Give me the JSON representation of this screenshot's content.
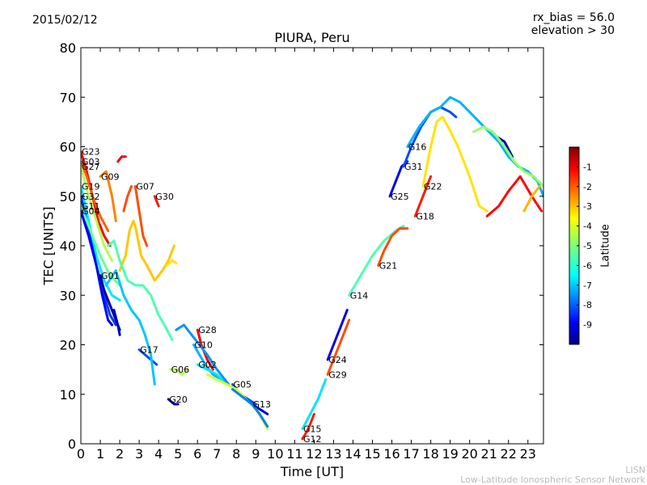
{
  "header": {
    "date": "2015/02/12",
    "annotation_line1": "rx_bias = 56.0",
    "annotation_line2": "elevation > 30"
  },
  "footer": {
    "credit_line1": "LISN",
    "credit_line2": "Low-Latitude Ionospheric Sensor Network"
  },
  "chart_data": {
    "type": "scatter",
    "title": "PIURA, Peru",
    "xlabel": "Time [UT]",
    "ylabel": "TEC [UNITS]",
    "xlim": [
      0,
      23.8
    ],
    "ylim": [
      0,
      80
    ],
    "xticks": [
      0,
      1,
      2,
      3,
      4,
      5,
      6,
      7,
      8,
      9,
      10,
      11,
      12,
      13,
      14,
      15,
      16,
      17,
      18,
      19,
      20,
      21,
      22,
      23
    ],
    "yticks": [
      0,
      10,
      20,
      30,
      40,
      50,
      60,
      70,
      80
    ],
    "grid": false,
    "colorbar": {
      "label": "Latitude",
      "range": [
        -10,
        0
      ],
      "ticks": [
        -1,
        -2,
        -3,
        -4,
        -5,
        -6,
        -7,
        -8,
        -9
      ],
      "colormap": "jet"
    },
    "series": [
      {
        "name": "G23",
        "lat": -1.3,
        "points": [
          [
            0,
            59
          ],
          [
            0.3,
            55
          ],
          [
            0.6,
            50
          ],
          [
            0.9,
            45
          ],
          [
            1.2,
            42
          ],
          [
            1.5,
            40
          ]
        ]
      },
      {
        "name": "G03",
        "lat": -2.2,
        "points": [
          [
            0,
            57
          ],
          [
            0.3,
            54
          ],
          [
            0.6,
            50
          ],
          [
            1.0,
            46
          ],
          [
            1.4,
            43
          ]
        ]
      },
      {
        "name": "G27",
        "lat": -4.5,
        "points": [
          [
            0,
            56
          ],
          [
            0.4,
            50
          ],
          [
            0.8,
            45
          ],
          [
            1.2,
            40
          ],
          [
            1.6,
            37
          ]
        ]
      },
      {
        "name": "G09",
        "lat": -2.5,
        "points": [
          [
            1.0,
            54
          ],
          [
            1.3,
            55
          ],
          [
            1.6,
            50
          ],
          [
            1.8,
            45
          ]
        ]
      },
      {
        "name": "G19",
        "lat": -6.5,
        "points": [
          [
            0,
            52
          ],
          [
            0.4,
            45
          ],
          [
            0.8,
            38
          ],
          [
            1.2,
            33
          ],
          [
            1.6,
            30
          ],
          [
            2.0,
            29
          ]
        ]
      },
      {
        "name": "G32",
        "lat": -8.2,
        "points": [
          [
            0,
            50
          ],
          [
            0.4,
            43
          ],
          [
            0.8,
            36
          ],
          [
            1.2,
            30
          ],
          [
            1.5,
            26
          ],
          [
            1.8,
            24
          ]
        ]
      },
      {
        "name": "G11",
        "lat": -5.2,
        "points": [
          [
            0,
            48
          ],
          [
            0.5,
            43
          ],
          [
            1.0,
            38
          ],
          [
            1.5,
            34
          ],
          [
            2.0,
            32
          ]
        ]
      },
      {
        "name": "G04",
        "lat": -8.8,
        "points": [
          [
            0,
            47
          ],
          [
            0.4,
            42
          ],
          [
            0.8,
            36
          ],
          [
            1.1,
            30
          ],
          [
            1.4,
            25
          ],
          [
            1.6,
            24
          ]
        ]
      },
      {
        "name": "G01",
        "lat": -9.6,
        "points": [
          [
            1.0,
            34
          ],
          [
            1.2,
            31
          ],
          [
            1.5,
            28
          ],
          [
            1.8,
            25
          ],
          [
            2.0,
            23
          ]
        ]
      },
      {
        "name": "G07",
        "lat": -2.0,
        "points": [
          [
            2.8,
            52
          ],
          [
            3.0,
            47
          ],
          [
            3.2,
            42
          ],
          [
            3.4,
            40
          ]
        ]
      },
      {
        "name": "G30",
        "lat": -1.5,
        "points": [
          [
            3.8,
            50
          ],
          [
            3.9,
            49
          ],
          [
            4.0,
            48
          ]
        ]
      },
      {
        "name": "G17",
        "lat": -8.0,
        "points": [
          [
            3.0,
            19
          ],
          [
            3.3,
            18
          ],
          [
            3.6,
            17
          ],
          [
            3.9,
            16
          ]
        ]
      },
      {
        "name": "G06",
        "lat": -4.5,
        "points": [
          [
            4.6,
            15
          ],
          [
            4.9,
            15
          ],
          [
            5.2,
            14
          ],
          [
            5.5,
            15
          ]
        ]
      },
      {
        "name": "G20",
        "lat": -9.5,
        "points": [
          [
            4.5,
            9
          ],
          [
            4.8,
            8
          ],
          [
            5.0,
            8
          ]
        ]
      },
      {
        "name": "G28",
        "lat": -1.2,
        "points": [
          [
            6.0,
            23
          ],
          [
            6.2,
            20
          ],
          [
            6.5,
            17
          ],
          [
            6.8,
            15
          ]
        ]
      },
      {
        "name": "G10",
        "lat": -7.0,
        "points": [
          [
            5.8,
            20
          ],
          [
            6.1,
            18
          ],
          [
            6.4,
            16
          ],
          [
            6.8,
            14
          ],
          [
            7.2,
            13
          ]
        ]
      },
      {
        "name": "G02",
        "lat": -6.5,
        "points": [
          [
            6.0,
            16
          ],
          [
            6.5,
            15
          ],
          [
            7.0,
            14
          ],
          [
            7.5,
            12
          ]
        ]
      },
      {
        "name": "G05",
        "lat": -8.0,
        "points": [
          [
            7.8,
            12
          ],
          [
            8.2,
            10
          ],
          [
            8.6,
            9
          ],
          [
            9.0,
            8
          ]
        ]
      },
      {
        "name": "G13",
        "lat": -9.2,
        "points": [
          [
            8.8,
            8
          ],
          [
            9.2,
            7
          ],
          [
            9.6,
            6
          ]
        ]
      },
      {
        "name": "G15",
        "lat": -6.5,
        "points": [
          [
            11.4,
            3
          ],
          [
            11.8,
            6
          ],
          [
            12.2,
            9
          ],
          [
            12.6,
            13
          ]
        ]
      },
      {
        "name": "G12",
        "lat": -1.5,
        "points": [
          [
            11.4,
            1
          ],
          [
            11.7,
            3
          ],
          [
            12.0,
            6
          ]
        ]
      },
      {
        "name": "G24",
        "lat": -9.0,
        "points": [
          [
            12.7,
            17
          ],
          [
            13.0,
            20
          ],
          [
            13.4,
            24
          ],
          [
            13.7,
            27
          ]
        ]
      },
      {
        "name": "G29",
        "lat": -2.0,
        "points": [
          [
            12.7,
            14
          ],
          [
            13.0,
            17
          ],
          [
            13.4,
            21
          ],
          [
            13.8,
            25
          ]
        ]
      },
      {
        "name": "G14",
        "lat": -5.5,
        "points": [
          [
            13.8,
            30
          ],
          [
            14.4,
            34
          ],
          [
            15.0,
            38
          ],
          [
            15.6,
            41
          ],
          [
            16.2,
            43
          ],
          [
            16.6,
            44
          ]
        ]
      },
      {
        "name": "G21",
        "lat": -2.0,
        "points": [
          [
            15.3,
            36
          ],
          [
            15.6,
            39
          ],
          [
            16.0,
            42
          ],
          [
            16.4,
            43.5
          ],
          [
            16.8,
            43.5
          ]
        ]
      },
      {
        "name": "G25",
        "lat": -9.0,
        "points": [
          [
            15.9,
            50
          ],
          [
            16.2,
            53
          ],
          [
            16.5,
            56
          ],
          [
            16.8,
            57
          ]
        ]
      },
      {
        "name": "G31",
        "lat": -8.0,
        "points": [
          [
            16.6,
            56
          ],
          [
            17.0,
            60
          ],
          [
            17.5,
            64
          ],
          [
            18.0,
            67
          ],
          [
            18.5,
            68
          ],
          [
            19.0,
            67
          ],
          [
            19.3,
            66
          ]
        ]
      },
      {
        "name": "G18",
        "lat": -1.5,
        "points": [
          [
            17.2,
            46
          ],
          [
            17.6,
            50
          ],
          [
            18.0,
            54
          ]
        ]
      },
      {
        "name": "G22",
        "lat": -3.5,
        "points": [
          [
            17.6,
            52
          ],
          [
            18.0,
            60
          ],
          [
            18.3,
            65
          ],
          [
            18.6,
            66
          ],
          [
            18.9,
            64
          ],
          [
            19.4,
            60
          ],
          [
            20.0,
            54
          ],
          [
            20.5,
            48
          ],
          [
            20.9,
            47
          ]
        ]
      },
      {
        "name": "G16",
        "lat": -7.0,
        "points": [
          [
            16.8,
            60
          ],
          [
            17.4,
            64
          ],
          [
            18.0,
            67
          ],
          [
            18.5,
            68
          ],
          [
            19.0,
            70
          ],
          [
            19.5,
            69
          ],
          [
            20.0,
            67
          ],
          [
            20.5,
            65
          ],
          [
            21.0,
            63
          ],
          [
            21.5,
            61
          ],
          [
            22.0,
            58
          ],
          [
            22.5,
            56
          ],
          [
            23.0,
            55
          ],
          [
            23.5,
            53
          ],
          [
            23.8,
            50
          ]
        ]
      },
      {
        "name": "",
        "lat": -9.5,
        "points": [
          [
            21.4,
            62
          ],
          [
            21.8,
            61
          ],
          [
            22.2,
            58
          ]
        ]
      },
      {
        "name": "",
        "lat": -4.8,
        "points": [
          [
            20.2,
            63
          ],
          [
            20.7,
            64
          ],
          [
            21.2,
            63
          ],
          [
            21.8,
            60
          ],
          [
            22.3,
            57
          ],
          [
            22.8,
            55
          ],
          [
            23.3,
            54
          ],
          [
            23.8,
            52
          ]
        ]
      },
      {
        "name": "",
        "lat": -1.3,
        "points": [
          [
            20.9,
            46
          ],
          [
            21.5,
            48
          ],
          [
            22.0,
            51
          ],
          [
            22.6,
            54
          ],
          [
            23.2,
            50
          ],
          [
            23.7,
            47
          ]
        ]
      },
      {
        "name": "",
        "lat": -3.0,
        "points": [
          [
            22.8,
            47
          ],
          [
            23.2,
            50
          ],
          [
            23.6,
            52
          ]
        ]
      },
      {
        "name": "",
        "lat": -3.2,
        "points": [
          [
            2.0,
            35
          ],
          [
            2.3,
            38
          ],
          [
            2.5,
            43
          ],
          [
            2.7,
            45
          ],
          [
            2.8,
            44
          ],
          [
            3.1,
            38
          ],
          [
            3.4,
            36
          ],
          [
            3.8,
            33
          ],
          [
            4.2,
            35
          ],
          [
            4.5,
            37
          ],
          [
            4.8,
            40
          ]
        ]
      },
      {
        "name": "",
        "lat": -5.5,
        "points": [
          [
            1.4,
            40
          ],
          [
            1.7,
            41
          ],
          [
            2.0,
            37
          ],
          [
            2.4,
            33
          ],
          [
            2.8,
            32
          ],
          [
            3.2,
            32
          ],
          [
            3.6,
            30
          ],
          [
            4.0,
            26
          ],
          [
            4.3,
            24
          ],
          [
            4.7,
            21
          ]
        ]
      },
      {
        "name": "",
        "lat": -6.8,
        "points": [
          [
            1.3,
            32
          ],
          [
            1.8,
            35
          ],
          [
            2.2,
            30
          ],
          [
            2.6,
            27
          ],
          [
            3.0,
            25
          ],
          [
            3.3,
            22
          ],
          [
            3.6,
            18
          ],
          [
            3.8,
            12
          ]
        ]
      },
      {
        "name": "",
        "lat": -7.3,
        "points": [
          [
            4.9,
            23
          ],
          [
            5.3,
            24
          ],
          [
            5.7,
            22
          ],
          [
            6.1,
            20
          ],
          [
            6.5,
            18
          ],
          [
            7.0,
            15
          ],
          [
            7.6,
            12
          ]
        ]
      },
      {
        "name": "",
        "lat": -3.5,
        "points": [
          [
            4.4,
            36
          ],
          [
            4.7,
            37
          ],
          [
            4.9,
            36.5
          ]
        ]
      },
      {
        "name": "",
        "lat": -2.0,
        "points": [
          [
            2.2,
            47
          ],
          [
            2.4,
            50
          ],
          [
            2.6,
            52
          ]
        ]
      },
      {
        "name": "",
        "lat": -1.2,
        "points": [
          [
            1.9,
            57
          ],
          [
            2.1,
            58
          ],
          [
            2.3,
            58
          ]
        ]
      },
      {
        "name": "",
        "lat": -9.5,
        "points": [
          [
            1.7,
            27
          ],
          [
            1.9,
            24
          ],
          [
            2.0,
            22
          ]
        ]
      },
      {
        "name": "",
        "lat": -4.2,
        "points": [
          [
            6.5,
            14
          ],
          [
            7.0,
            13
          ],
          [
            7.5,
            12
          ],
          [
            8.0,
            11
          ],
          [
            8.5,
            9
          ],
          [
            9.0,
            7
          ],
          [
            9.4,
            4.5
          ],
          [
            9.6,
            3
          ]
        ]
      },
      {
        "name": "",
        "lat": -7.5,
        "points": [
          [
            7.8,
            11
          ],
          [
            8.3,
            9.5
          ],
          [
            8.8,
            8
          ],
          [
            9.2,
            6
          ],
          [
            9.6,
            3.5
          ]
        ]
      }
    ]
  }
}
